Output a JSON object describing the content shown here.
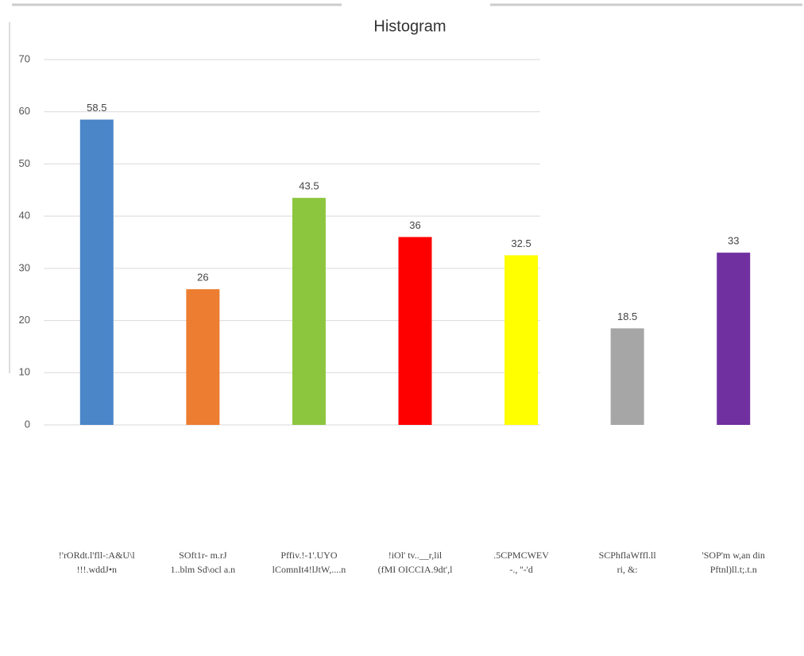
{
  "chart_data": {
    "type": "bar",
    "title": "Histogram",
    "categories": [
      "!'rORdt.l'fll-:A&U\\l",
      "SOft1r- m.rJ",
      "Pffiv.!-1'.UYO",
      "!iOl' tv..__r,lil",
      ".5CPMCWEV",
      "SCPhflaWffl.ll",
      "'SOP'm w,an din"
    ],
    "subcategories": [
      "!!!.wddJ•n",
      "1..blm Sd\\ocl a.n",
      "lComnIt4!lJtW,....n",
      "(fMI OICCIA.9dt',l",
      "-.,  ''-'d",
      "ri, &:",
      "Pftnl)ll.t;.t.n"
    ],
    "series": [
      {
        "name": "Values",
        "colors": [
          "#4a86c8",
          "#ed7d31",
          "#8cc63f",
          "#ff0000",
          "#ffff00",
          "#a6a6a6",
          "#7030a0"
        ],
        "values": [
          58.5,
          26,
          43.5,
          36,
          32.5,
          18.5,
          33
        ]
      }
    ],
    "ylim": [
      0,
      70
    ],
    "yticks": [
      0,
      10,
      20,
      30,
      40,
      50,
      60,
      70
    ],
    "grid": true
  }
}
